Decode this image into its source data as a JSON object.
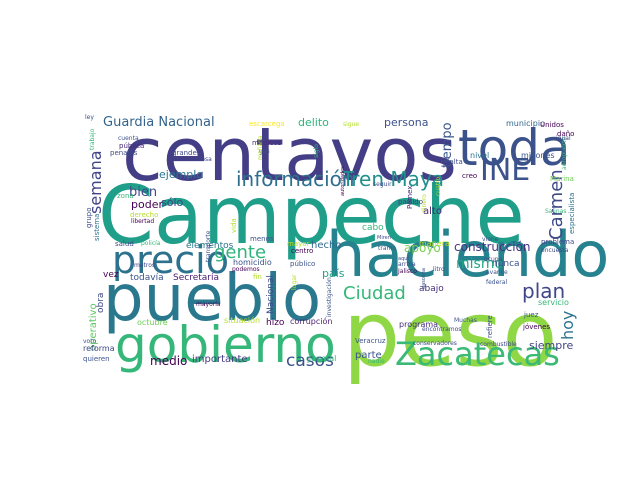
{
  "palette": [
    "#440154",
    "#482878",
    "#3e4989",
    "#31688e",
    "#26828e",
    "#1f9e89",
    "#35b779",
    "#6ece58",
    "#b5de2b",
    "#fde725"
  ],
  "words": [
    {
      "text": "Campeche",
      "color": "#1f9e89"
    },
    {
      "text": "peso",
      "color": "#8fd744"
    },
    {
      "text": "centavos",
      "color": "#433e85"
    },
    {
      "text": "pueblo",
      "color": "#2a788e"
    },
    {
      "text": "haciendo",
      "color": "#26828e"
    },
    {
      "text": "gobierno",
      "color": "#35b779"
    },
    {
      "text": "toda",
      "color": "#3b528b"
    },
    {
      "text": "precio",
      "color": "#2c728e"
    },
    {
      "text": "Zacatecas",
      "color": "#3aba76"
    },
    {
      "text": "INE",
      "color": "#3b528b"
    },
    {
      "text": "información",
      "color": "#2d708e"
    },
    {
      "text": "Tren Maya",
      "color": "#21908d"
    },
    {
      "text": "gente",
      "color": "#2fb47c"
    },
    {
      "text": "Ciudad",
      "color": "#35b779"
    },
    {
      "text": "plan",
      "color": "#3f4788"
    },
    {
      "text": "Carmen",
      "color": "#3e4a89"
    },
    {
      "text": "mismo",
      "color": "#22a785"
    },
    {
      "text": "semana",
      "color": "#414487"
    },
    {
      "text": "casos",
      "color": "#3b528b"
    },
    {
      "text": "Guardia Nacional",
      "color": "#33638d"
    },
    {
      "text": "hoy",
      "color": "#2c728e"
    },
    {
      "text": "tiempo",
      "color": "#39568c"
    },
    {
      "text": "ejemplo",
      "color": "#2a788e"
    },
    {
      "text": "bien",
      "color": "#3e4989"
    },
    {
      "text": "construcción",
      "color": "#463480"
    },
    {
      "text": "apoyo",
      "color": "#7ad151"
    },
    {
      "text": "persona",
      "color": "#3b528b"
    },
    {
      "text": "delito",
      "color": "#2eb37c"
    },
    {
      "text": "poder",
      "color": "#440154"
    },
    {
      "text": "sólo",
      "color": "#3e4989"
    },
    {
      "text": "país",
      "color": "#20a386"
    },
    {
      "text": "parte",
      "color": "#3b528b"
    },
    {
      "text": "siempre",
      "color": "#414487"
    },
    {
      "text": "medio",
      "color": "#440154"
    },
    {
      "text": "importante",
      "color": "#443983"
    },
    {
      "text": "hecho",
      "color": "#31688e"
    },
    {
      "text": "alto",
      "color": "#482475"
    },
    {
      "text": "cabo",
      "color": "#35b779"
    },
    {
      "text": "manera",
      "color": "#b5de2b"
    },
    {
      "text": "abajo",
      "color": "#46327e"
    },
    {
      "text": "nunca",
      "color": "#3b528b"
    },
    {
      "text": "obra",
      "color": "#3e4989"
    },
    {
      "text": "operativo",
      "color": "#5ec962"
    },
    {
      "text": "elementos",
      "color": "#2a788e"
    },
    {
      "text": "vez",
      "color": "#440154"
    },
    {
      "text": "todavía",
      "color": "#3b528b"
    },
    {
      "text": "Secretaría",
      "color": "#481a6c"
    },
    {
      "text": "homicidio",
      "color": "#3b528b"
    },
    {
      "text": "Nacional",
      "color": "#3e4989"
    },
    {
      "text": "corrupción",
      "color": "#481f70"
    },
    {
      "text": "programa",
      "color": "#472d7b"
    },
    {
      "text": "hizo",
      "color": "#440154"
    },
    {
      "text": "situación",
      "color": "#b5de2b"
    },
    {
      "text": "general",
      "color": "#2fb47c"
    },
    {
      "text": "octubre",
      "color": "#6ece58"
    },
    {
      "text": "reforma",
      "color": "#3e4989"
    },
    {
      "text": "quieren",
      "color": "#3b528b"
    },
    {
      "text": "municipio",
      "color": "#31688e"
    },
    {
      "text": "millones",
      "color": "#3b528b"
    },
    {
      "text": "nivel",
      "color": "#2c728e"
    },
    {
      "text": "falta",
      "color": "#3e4989"
    },
    {
      "text": "creo",
      "color": "#440154"
    },
    {
      "text": "Pemex",
      "color": "#482878"
    },
    {
      "text": "partido",
      "color": "#433e85"
    },
    {
      "text": "médicos",
      "color": "#472d7b"
    },
    {
      "text": "gas",
      "color": "#3b528b"
    },
    {
      "text": "siglo",
      "color": "#35b779"
    },
    {
      "text": "sigue",
      "color": "#b5de2b"
    },
    {
      "text": "Unidos",
      "color": "#440154"
    },
    {
      "text": "daño",
      "color": "#440154"
    },
    {
      "text": "igual",
      "color": "#3e4989"
    },
    {
      "text": "Marina",
      "color": "#6ece58"
    },
    {
      "text": "especialista",
      "color": "#2c728e"
    },
    {
      "text": "problema",
      "color": "#3e4989"
    },
    {
      "text": "servicio",
      "color": "#35b779"
    },
    {
      "text": "juez",
      "color": "#3b528b"
    },
    {
      "text": "jóvenes",
      "color": "#440154"
    },
    {
      "text": "refiere",
      "color": "#3e4989"
    },
    {
      "text": "Veracruz",
      "color": "#3b528b"
    },
    {
      "text": "salud",
      "color": "#3e4989"
    },
    {
      "text": "menos",
      "color": "#3b528b"
    },
    {
      "text": "mayor",
      "color": "#b5de2b"
    },
    {
      "text": "público",
      "color": "#3b528b"
    },
    {
      "text": "centro",
      "color": "#440154"
    },
    {
      "text": "libertad",
      "color": "#440154"
    },
    {
      "text": "zona",
      "color": "#35b779"
    },
    {
      "text": "grupo",
      "color": "#3e4989"
    },
    {
      "text": "sistema",
      "color": "#2c728e"
    },
    {
      "text": "transporte",
      "color": "#3b528b"
    },
    {
      "text": "penales",
      "color": "#3e4989"
    },
    {
      "text": "pública",
      "color": "#482878"
    },
    {
      "text": "cuenta",
      "color": "#3b528b"
    },
    {
      "text": "grande",
      "color": "#3e4989"
    },
    {
      "text": "cosa",
      "color": "#3e4989"
    },
    {
      "text": "dinero",
      "color": "#b5de2b"
    },
    {
      "text": "seguir",
      "color": "#3e4989"
    },
    {
      "text": "vida",
      "color": "#b5de2b"
    },
    {
      "text": "fin",
      "color": "#b5de2b"
    },
    {
      "text": "derecho",
      "color": "#b5de2b"
    },
    {
      "text": "podemos",
      "color": "#440154"
    },
    {
      "text": "policía",
      "color": "#35b779"
    },
    {
      "text": "escarcega",
      "color": "#fde725"
    },
    {
      "text": "aeropuerto",
      "color": "#35b779"
    },
    {
      "text": "ocupa",
      "color": "#3e4989"
    },
    {
      "text": "avance",
      "color": "#3b528b"
    },
    {
      "text": "encuesta",
      "color": "#3e4989"
    },
    {
      "text": "federal",
      "color": "#3b528b"
    },
    {
      "text": "litro",
      "color": "#3e4989"
    },
    {
      "text": "viene",
      "color": "#3e4989"
    },
    {
      "text": "tramo",
      "color": "#3b528b"
    },
    {
      "text": "Jalisco",
      "color": "#440154"
    },
    {
      "text": "encontramos",
      "color": "#3e4989"
    },
    {
      "text": "Muchas",
      "color": "#3b528b"
    },
    {
      "text": "combustible",
      "color": "#3e4989"
    },
    {
      "text": "conservadores",
      "color": "#3e4989"
    },
    {
      "text": "nadie",
      "color": "#35b779"
    },
    {
      "text": "mayoría",
      "color": "#440154"
    },
    {
      "text": "investigación",
      "color": "#3b528b"
    },
    {
      "text": "autoridades",
      "color": "#440154"
    },
    {
      "text": "metros",
      "color": "#3e4989"
    },
    {
      "text": "mañana",
      "color": "#b5de2b"
    },
    {
      "text": "lugar",
      "color": "#b5de2b"
    },
    {
      "text": "arriba",
      "color": "#3e4989"
    },
    {
      "text": "Miren",
      "color": "#3e4989"
    },
    {
      "text": "cuatro",
      "color": "#b5de2b"
    },
    {
      "text": "ley",
      "color": "#3b528b"
    },
    {
      "text": "voto",
      "color": "#3b528b"
    },
    {
      "text": "trabajo",
      "color": "#35b779"
    },
    {
      "text": "aquí",
      "color": "#3e4989"
    },
    {
      "text": "Salinas",
      "color": "#35b779"
    },
    {
      "text": "gasolina",
      "color": "#3b528b"
    }
  ]
}
